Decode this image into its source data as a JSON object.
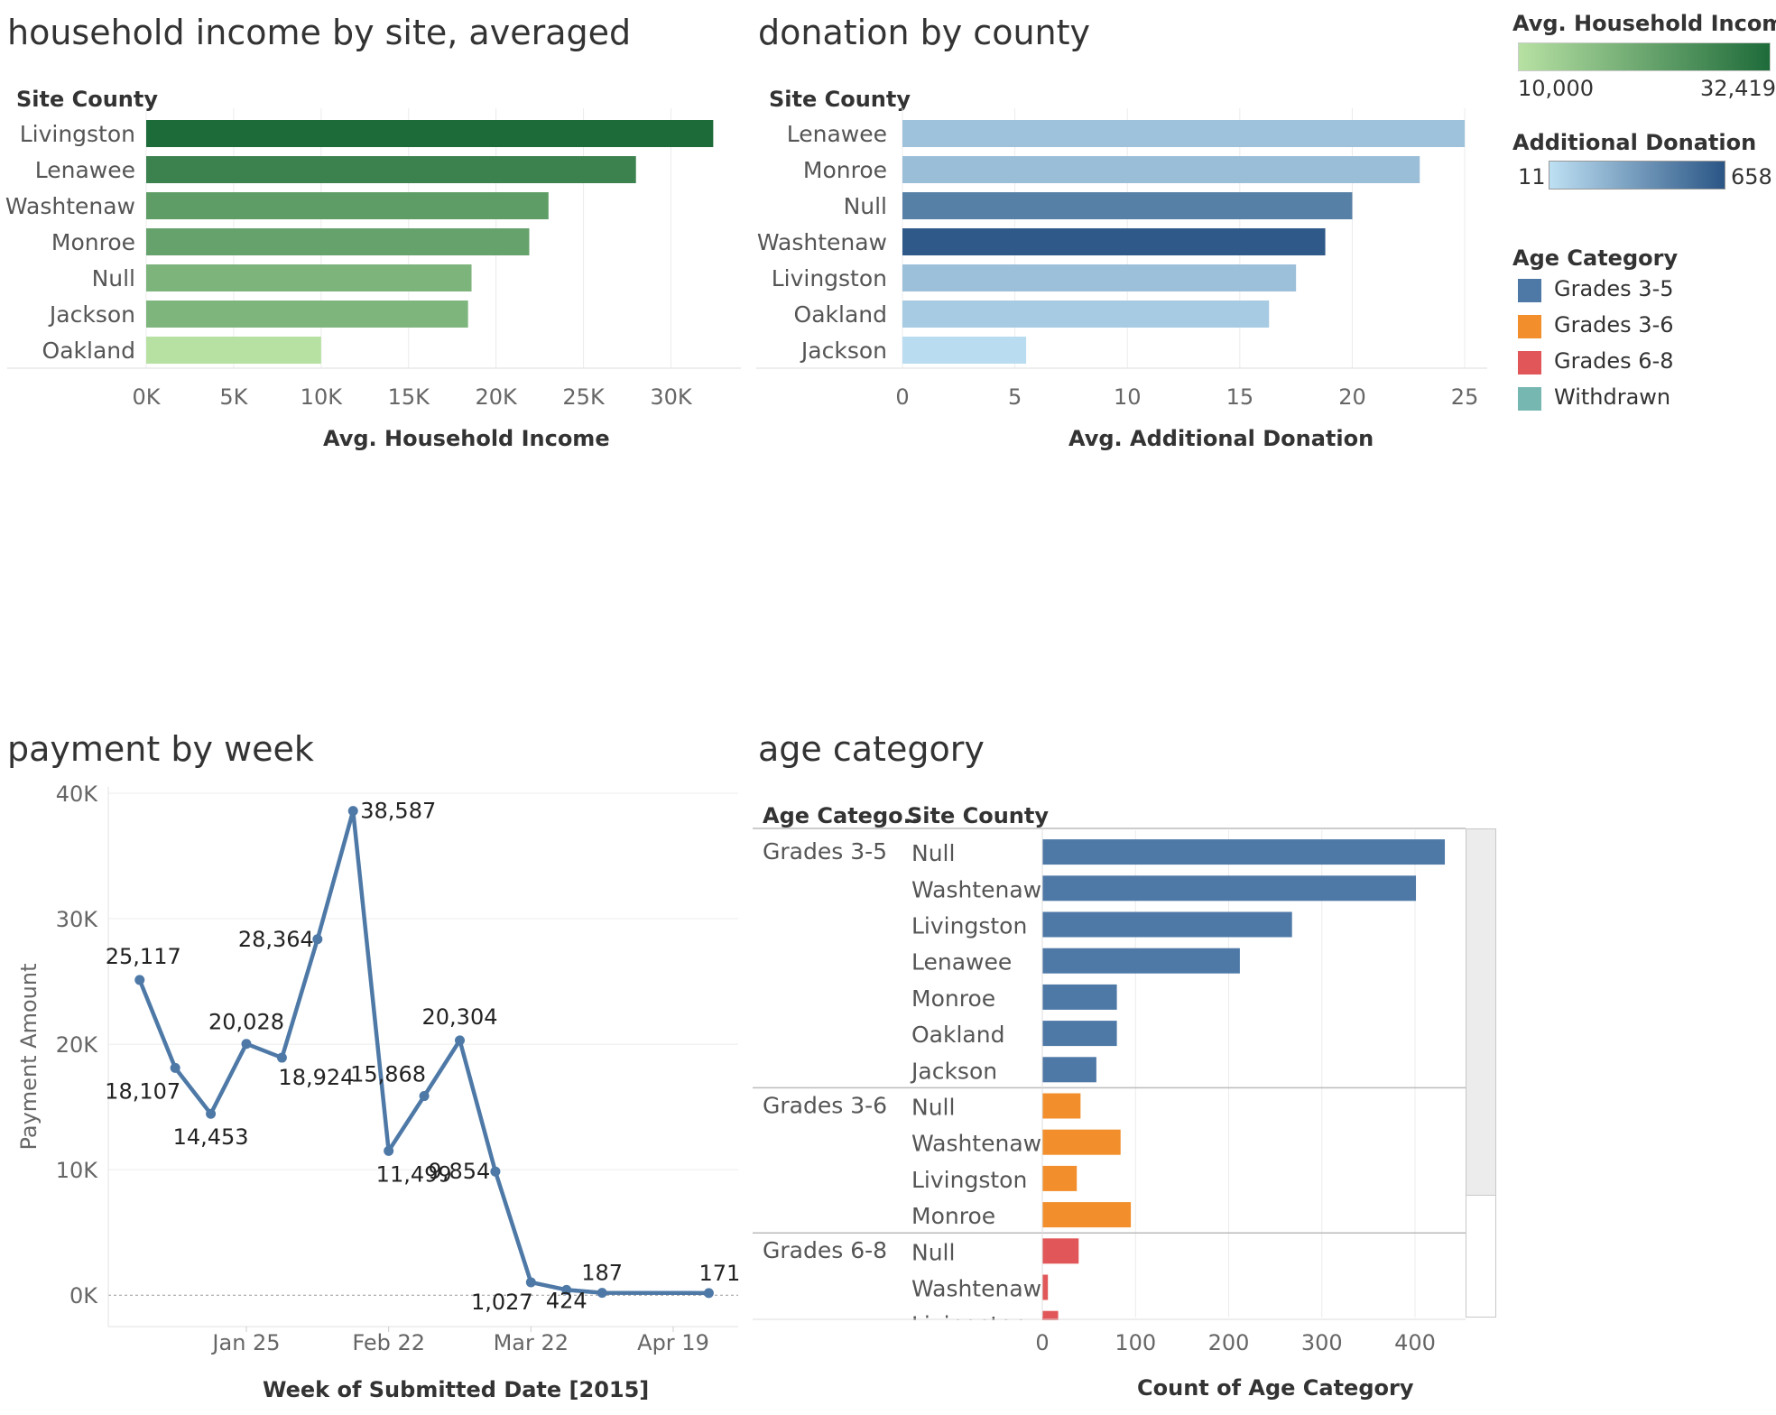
{
  "colors": {
    "income_low": "#b7e1a3",
    "income_high": "#1e6b3a",
    "donation_low": "#bee0f3",
    "donation_high": "#2a5585",
    "grades_3_5": "#4e79a7",
    "grades_3_6": "#f28e2b",
    "grades_6_8": "#e15759",
    "withdrawn": "#76b7b2",
    "line": "#4e79a7"
  },
  "legends": {
    "income": {
      "title": "Avg. Household Income",
      "min_label": "10,000",
      "max_label": "32,419"
    },
    "donation": {
      "title": "Additional Donation",
      "min_label": "11",
      "max_label": "658"
    },
    "age": {
      "title": "Age Category",
      "items": [
        {
          "label": "Grades 3-5",
          "color": "#4e79a7"
        },
        {
          "label": "Grades 3-6",
          "color": "#f28e2b"
        },
        {
          "label": "Grades 6-8",
          "color": "#e15759"
        },
        {
          "label": "Withdrawn",
          "color": "#76b7b2"
        }
      ]
    }
  },
  "chart_data": [
    {
      "id": "income",
      "type": "bar",
      "orientation": "horizontal",
      "title": "household income by site, averaged",
      "row_header": "Site County",
      "xlabel": "Avg. Household Income",
      "categories": [
        "Livingston",
        "Lenawee",
        "Washtenaw",
        "Monroe",
        "Null",
        "Jackson",
        "Oakland"
      ],
      "values": [
        32419,
        28000,
        23000,
        21900,
        18600,
        18400,
        10000
      ],
      "xlim": [
        0,
        34000
      ],
      "ticks": [
        0,
        5000,
        10000,
        15000,
        20000,
        25000,
        30000
      ],
      "tick_labels": [
        "0K",
        "5K",
        "10K",
        "15K",
        "20K",
        "25K",
        "30K"
      ],
      "color_range": [
        10000,
        32419
      ]
    },
    {
      "id": "donation",
      "type": "bar",
      "orientation": "horizontal",
      "title": "donation by county",
      "row_header": "Site County",
      "xlabel": "Avg. Additional Donation",
      "categories": [
        "Lenawee",
        "Monroe",
        "Null",
        "Washtenaw",
        "Livingston",
        "Oakland",
        "Jackson"
      ],
      "values": [
        25,
        23,
        20,
        18.8,
        17.5,
        16.3,
        5.5
      ],
      "total_donation_color": [
        150,
        170,
        460,
        640,
        160,
        110,
        30
      ],
      "xlim": [
        0,
        26
      ],
      "ticks": [
        0,
        5,
        10,
        15,
        20,
        25
      ],
      "tick_labels": [
        "0",
        "5",
        "10",
        "15",
        "20",
        "25"
      ],
      "color_range": [
        11,
        658
      ]
    },
    {
      "id": "payment",
      "type": "line",
      "title": "payment by week",
      "xlabel": "Week of Submitted Date [2015]",
      "ylabel": "Payment Amount",
      "x": [
        "2015-01-04",
        "2015-01-11",
        "2015-01-18",
        "2015-01-25",
        "2015-02-01",
        "2015-02-08",
        "2015-02-15",
        "2015-02-22",
        "2015-03-01",
        "2015-03-08",
        "2015-03-15",
        "2015-03-22",
        "2015-03-29",
        "2015-04-05",
        "2015-04-26"
      ],
      "values": [
        25117,
        18107,
        14453,
        20028,
        18924,
        28364,
        38587,
        11499,
        15868,
        20304,
        9854,
        1027,
        424,
        187,
        171
      ],
      "point_labels": [
        "25,117",
        "18,107",
        "14,453",
        "20,028",
        "18,924",
        "28,364",
        "38,587",
        "11,499",
        "15,868",
        "20,304",
        "9,854",
        "1,027",
        "424",
        "187",
        "171"
      ],
      "ylim": [
        -2500,
        40500
      ],
      "y_ticks": [
        0,
        10000,
        20000,
        30000,
        40000
      ],
      "y_tick_labels": [
        "0K",
        "10K",
        "20K",
        "30K",
        "40K"
      ],
      "x_ticks": [
        "2015-01-25",
        "2015-02-22",
        "2015-03-22",
        "2015-04-19"
      ],
      "x_tick_labels": [
        "Jan 25",
        "Feb 22",
        "Mar 22",
        "Apr 19"
      ]
    },
    {
      "id": "age",
      "type": "bar",
      "orientation": "horizontal",
      "title": "age category",
      "row_headers": [
        "Age Catego..",
        "Site County"
      ],
      "xlabel": "Count of Age Category",
      "groups": [
        {
          "name": "Grades 3-5",
          "color": "#4e79a7",
          "categories": [
            "Null",
            "Washtenaw",
            "Livingston",
            "Lenawee",
            "Monroe",
            "Oakland",
            "Jackson"
          ],
          "values": [
            432,
            401,
            268,
            212,
            80,
            80,
            58
          ]
        },
        {
          "name": "Grades 3-6",
          "color": "#f28e2b",
          "categories": [
            "Null",
            "Washtenaw",
            "Livingston",
            "Monroe"
          ],
          "values": [
            41,
            84,
            37,
            95
          ]
        },
        {
          "name": "Grades 6-8",
          "color": "#e15759",
          "categories": [
            "Null",
            "Washtenaw",
            "Livingston"
          ],
          "values": [
            39,
            6,
            17
          ]
        }
      ],
      "xlim": [
        -10,
        460
      ],
      "ticks": [
        0,
        100,
        200,
        300,
        400
      ],
      "tick_labels": [
        "0",
        "100",
        "200",
        "300",
        "400"
      ]
    }
  ]
}
